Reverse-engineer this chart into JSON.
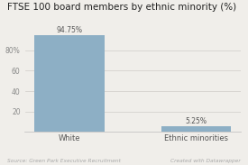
{
  "title": "FTSE 100 board members by ethnic minority (%)",
  "categories": [
    "White",
    "Ethnic minorities"
  ],
  "values": [
    94.75,
    5.25
  ],
  "labels": [
    "94.75%",
    "5.25%"
  ],
  "bar_color": "#8dafc5",
  "ylim": [
    0,
    100
  ],
  "yticks": [
    20,
    40,
    60,
    80
  ],
  "ytick_labels": [
    "20",
    "40",
    "60",
    "80%"
  ],
  "source_left": "Source: Green Park Executive Recruitment",
  "source_right": "Created with Datawrapper",
  "title_fontsize": 7.5,
  "label_fontsize": 5.5,
  "tick_fontsize": 5.5,
  "xtick_fontsize": 6.0,
  "source_fontsize": 4.2,
  "background_color": "#f0eeea"
}
